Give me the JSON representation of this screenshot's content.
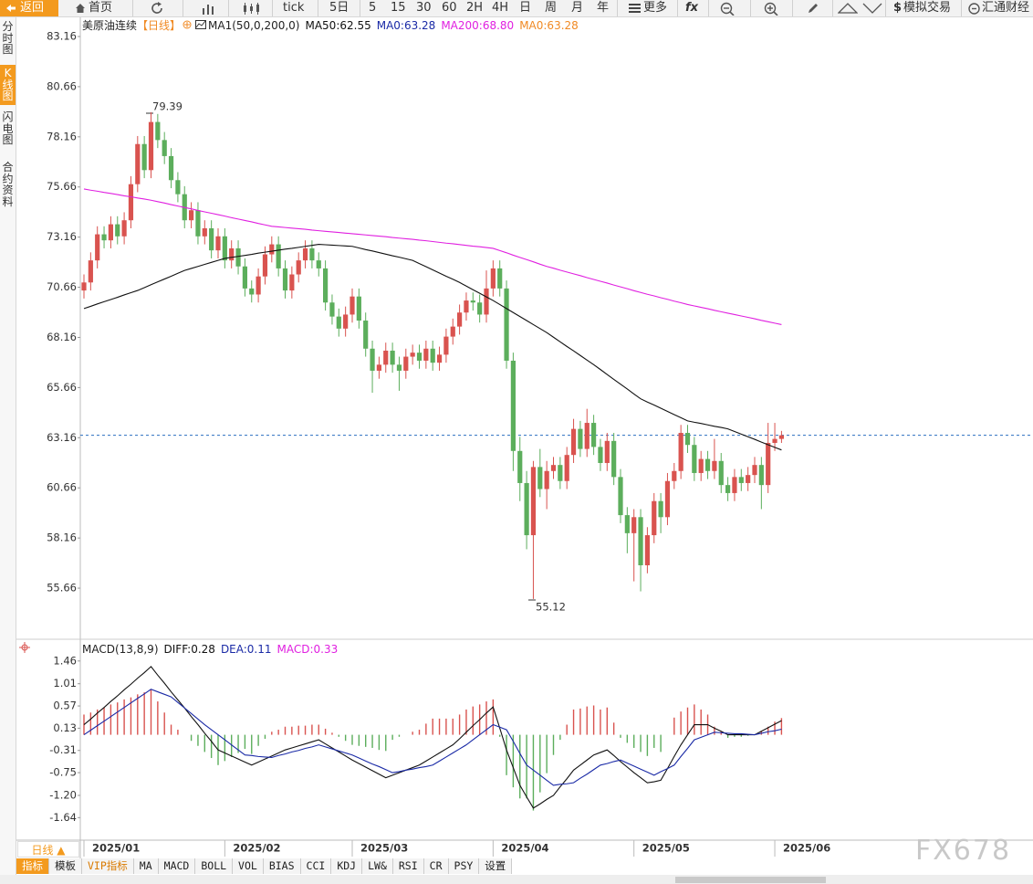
{
  "toolbar": {
    "back": "返回",
    "home": "首页",
    "buttons": [
      "tick",
      "5日",
      "5",
      "15",
      "30",
      "60",
      "2H",
      "4H",
      "日",
      "周",
      "月",
      "年"
    ],
    "more": "更多",
    "fx": "fx",
    "sim_mark": "$",
    "sim": "模拟交易",
    "brand": "汇通财经"
  },
  "sidebar": [
    "分时图",
    "K线图",
    "闪电图",
    "合约资料"
  ],
  "chart_data": [
    {
      "type": "candlestick",
      "title": "美原油连续",
      "period": "【日线】",
      "indicator": "MA1(50,0,200,0)",
      "up_color": "#d9534f",
      "down_color": "#5cae5c",
      "categories": [
        "2025/01",
        null,
        null,
        null,
        null,
        null,
        null,
        null,
        null,
        null,
        null,
        null,
        null,
        null,
        null,
        null,
        null,
        null,
        null,
        null,
        null,
        "2025/02",
        null,
        null,
        null,
        null,
        null,
        null,
        null,
        null,
        null,
        null,
        null,
        null,
        null,
        null,
        null,
        null,
        null,
        null,
        "2025/03",
        null,
        null,
        null,
        null,
        null,
        null,
        null,
        null,
        null,
        null,
        null,
        null,
        null,
        null,
        null,
        null,
        null,
        null,
        null,
        null,
        "2025/04",
        null,
        null,
        null,
        null,
        null,
        null,
        null,
        null,
        null,
        null,
        null,
        null,
        null,
        null,
        null,
        null,
        null,
        null,
        null,
        null,
        "2025/05",
        null,
        null,
        null,
        null,
        null,
        null,
        null,
        null,
        null,
        null,
        null,
        null,
        null,
        null,
        null,
        null,
        null,
        null,
        null,
        null,
        "2025/06",
        null
      ],
      "open": [
        70.5,
        70.9,
        72.0,
        73.3,
        73.0,
        73.8,
        73.2,
        74.0,
        75.8,
        77.8,
        76.5,
        78.9,
        78.0,
        77.2,
        76.0,
        75.3,
        74.0,
        74.5,
        73.2,
        73.6,
        72.5,
        73.2,
        72.0,
        72.6,
        71.7,
        70.6,
        70.3,
        71.2,
        72.3,
        72.8,
        71.6,
        70.5,
        71.3,
        72.0,
        72.6,
        72.0,
        71.6,
        69.9,
        69.2,
        68.6,
        69.3,
        70.2,
        69.0,
        67.6,
        66.5,
        66.8,
        67.5,
        66.8,
        66.5,
        67.2,
        67.4,
        67.0,
        67.6,
        66.9,
        67.3,
        68.2,
        68.7,
        69.4,
        70.0,
        69.9,
        69.3,
        70.6,
        71.6,
        70.6,
        67.0,
        62.5,
        60.9,
        58.3,
        61.7,
        60.6,
        61.5,
        61.8,
        61.0,
        62.3,
        63.6,
        62.6,
        63.9,
        62.7,
        61.9,
        63.0,
        61.2,
        59.3,
        58.4,
        59.2,
        56.8,
        58.3,
        60.0,
        59.2,
        61.0,
        61.5,
        63.4,
        62.8,
        61.4,
        62.1,
        61.5,
        62.0,
        60.8,
        60.4,
        61.2,
        60.9,
        61.3,
        61.8,
        60.8,
        62.9,
        63.1
      ],
      "high": [
        71.3,
        72.4,
        73.7,
        73.7,
        74.2,
        74.2,
        74.4,
        76.2,
        78.2,
        78.2,
        79.39,
        79.3,
        78.4,
        77.6,
        76.4,
        75.7,
        74.9,
        74.9,
        74.0,
        74.0,
        73.6,
        73.6,
        73.0,
        73.0,
        72.1,
        71.0,
        71.6,
        72.7,
        73.2,
        73.2,
        72.0,
        71.7,
        72.4,
        73.0,
        73.0,
        72.4,
        72.0,
        70.3,
        69.6,
        69.7,
        70.6,
        70.6,
        69.4,
        68.0,
        67.2,
        67.9,
        67.9,
        67.2,
        67.6,
        67.8,
        67.8,
        68.0,
        68.0,
        67.7,
        68.6,
        69.1,
        69.8,
        70.4,
        70.4,
        70.3,
        71.5,
        72.0,
        72.0,
        71.0,
        67.4,
        63.2,
        61.5,
        62.0,
        62.6,
        62.0,
        62.2,
        62.2,
        62.7,
        64.1,
        64.0,
        64.6,
        64.3,
        63.1,
        63.4,
        63.4,
        61.6,
        59.7,
        59.6,
        59.6,
        58.7,
        60.4,
        60.4,
        61.4,
        61.9,
        63.8,
        63.8,
        63.2,
        62.5,
        62.5,
        63.1,
        62.4,
        61.2,
        61.6,
        61.6,
        61.7,
        62.2,
        62.2,
        63.9,
        63.9,
        63.5
      ],
      "low": [
        70.1,
        70.5,
        71.6,
        72.6,
        72.6,
        72.8,
        72.8,
        73.6,
        75.4,
        76.1,
        76.1,
        77.6,
        76.8,
        75.6,
        74.9,
        73.6,
        73.6,
        72.8,
        72.8,
        72.1,
        72.1,
        71.6,
        71.6,
        71.3,
        70.2,
        69.9,
        69.9,
        70.8,
        71.9,
        71.2,
        70.1,
        70.1,
        70.9,
        71.6,
        71.6,
        71.2,
        69.5,
        68.8,
        68.2,
        68.2,
        68.9,
        68.6,
        67.2,
        65.4,
        66.1,
        66.4,
        66.4,
        65.5,
        66.1,
        66.8,
        66.6,
        66.6,
        66.5,
        66.5,
        66.9,
        67.8,
        68.3,
        69.0,
        69.5,
        68.9,
        68.9,
        70.2,
        70.2,
        66.6,
        61.5,
        60.0,
        57.6,
        55.12,
        60.2,
        59.6,
        61.1,
        60.6,
        60.6,
        61.9,
        62.2,
        62.2,
        62.3,
        61.5,
        61.5,
        60.8,
        58.9,
        57.4,
        56.0,
        55.5,
        56.4,
        57.9,
        58.4,
        58.8,
        60.6,
        61.1,
        62.4,
        61.0,
        61.0,
        61.1,
        61.1,
        60.4,
        60.0,
        60.0,
        60.5,
        60.5,
        60.9,
        59.6,
        60.4,
        62.5,
        62.9
      ],
      "close": [
        70.9,
        72.0,
        73.3,
        73.0,
        73.8,
        73.2,
        74.0,
        75.8,
        77.8,
        76.5,
        78.9,
        78.0,
        77.2,
        76.0,
        75.3,
        74.0,
        74.5,
        73.2,
        73.6,
        72.5,
        73.2,
        72.0,
        72.6,
        71.7,
        70.6,
        70.3,
        71.2,
        72.3,
        72.8,
        71.6,
        70.5,
        71.3,
        72.0,
        72.6,
        72.0,
        71.6,
        69.9,
        69.2,
        68.6,
        69.3,
        70.2,
        69.0,
        67.6,
        66.5,
        66.8,
        67.5,
        66.8,
        66.5,
        67.2,
        67.4,
        67.0,
        67.6,
        66.9,
        67.3,
        68.2,
        68.7,
        69.4,
        70.0,
        69.9,
        69.3,
        70.6,
        71.6,
        70.6,
        67.0,
        62.5,
        60.9,
        58.3,
        61.7,
        60.6,
        61.5,
        61.8,
        61.0,
        62.3,
        63.6,
        62.6,
        63.9,
        62.7,
        61.9,
        63.0,
        61.2,
        59.3,
        58.4,
        59.2,
        56.8,
        58.3,
        60.0,
        59.2,
        61.0,
        61.5,
        63.4,
        62.8,
        61.4,
        62.1,
        61.5,
        62.0,
        60.8,
        60.4,
        61.2,
        60.9,
        61.3,
        61.8,
        60.8,
        62.9,
        63.1,
        63.28
      ],
      "series": [
        {
          "name": "MA50:62.55",
          "color": "#111111",
          "values": [
            69.6,
            69.71,
            69.83,
            69.94,
            70.05,
            70.16,
            70.28,
            70.39,
            70.5,
            70.64,
            70.79,
            70.93,
            71.07,
            71.21,
            71.36,
            71.5,
            71.6,
            71.7,
            71.8,
            71.9,
            72.0,
            72.1,
            72.15,
            72.2,
            72.25,
            72.3,
            72.36,
            72.41,
            72.46,
            72.51,
            72.56,
            72.6,
            72.65,
            72.7,
            72.75,
            72.8,
            72.78,
            72.76,
            72.74,
            72.72,
            72.7,
            72.62,
            72.54,
            72.47,
            72.39,
            72.31,
            72.23,
            72.16,
            72.08,
            72.0,
            71.84,
            71.69,
            71.53,
            71.37,
            71.21,
            71.06,
            70.9,
            70.72,
            70.54,
            70.36,
            70.18,
            70.0,
            69.8,
            69.6,
            69.4,
            69.2,
            69.0,
            68.8,
            68.6,
            68.4,
            68.17,
            67.94,
            67.71,
            67.49,
            67.26,
            67.03,
            66.8,
            66.56,
            66.31,
            66.07,
            65.83,
            65.59,
            65.34,
            65.1,
            64.94,
            64.79,
            64.63,
            64.47,
            64.31,
            64.16,
            64.0,
            63.93,
            63.87,
            63.8,
            63.73,
            63.67,
            63.6,
            63.47,
            63.34,
            63.21,
            63.08,
            62.94,
            62.81,
            62.68,
            62.55
          ]
        },
        {
          "name": "MA200:68.80",
          "color": "#e020e0",
          "values": [
            75.56,
            75.5,
            75.45,
            75.39,
            75.34,
            75.28,
            75.22,
            75.17,
            75.11,
            75.06,
            75.0,
            74.93,
            74.86,
            74.78,
            74.71,
            74.64,
            74.57,
            74.49,
            74.42,
            74.35,
            74.28,
            74.21,
            74.13,
            74.06,
            73.99,
            73.92,
            73.84,
            73.77,
            73.7,
            73.67,
            73.64,
            73.61,
            73.58,
            73.55,
            73.51,
            73.48,
            73.45,
            73.42,
            73.39,
            73.36,
            73.33,
            73.3,
            73.27,
            73.24,
            73.21,
            73.18,
            73.14,
            73.11,
            73.08,
            73.05,
            73.01,
            72.98,
            72.94,
            72.9,
            72.86,
            72.83,
            72.79,
            72.75,
            72.71,
            72.68,
            72.64,
            72.6,
            72.49,
            72.38,
            72.26,
            72.15,
            72.04,
            71.93,
            71.81,
            71.7,
            71.61,
            71.51,
            71.42,
            71.33,
            71.24,
            71.14,
            71.05,
            70.96,
            70.87,
            70.77,
            70.68,
            70.59,
            70.49,
            70.4,
            70.31,
            70.23,
            70.14,
            70.06,
            69.97,
            69.89,
            69.8,
            69.73,
            69.66,
            69.59,
            69.51,
            69.44,
            69.37,
            69.3,
            69.23,
            69.16,
            69.09,
            69.01,
            68.94,
            68.87,
            68.8
          ]
        }
      ],
      "legend_extra": [
        {
          "name": "MA0:63.28",
          "color": "#1a2aa6"
        },
        {
          "name": "MA0:63.28",
          "color": "#f08a24"
        }
      ],
      "last_price": 63.28,
      "last_price_color": "#2a6fc0",
      "annotations": [
        {
          "label": "79.39",
          "color": "#d9534f"
        },
        {
          "label": "55.12",
          "color": "#5cae5c"
        }
      ],
      "ylim": [
        53.34,
        83.98
      ],
      "yticks": [
        83.16,
        80.66,
        78.16,
        75.66,
        73.16,
        70.66,
        68.16,
        65.66,
        63.16,
        60.66,
        58.16,
        55.66
      ]
    },
    {
      "type": "macd",
      "title": "MACD(13,8,9)",
      "series": [
        {
          "name": "DIFF:0.28",
          "color": "#111111",
          "values": [
            0.2,
            0.31,
            0.43,
            0.54,
            0.66,
            0.77,
            0.89,
            1.0,
            1.12,
            1.23,
            1.35,
            1.18,
            1.02,
            0.85,
            0.69,
            0.53,
            0.36,
            0.2,
            0.03,
            -0.13,
            -0.3,
            -0.36,
            -0.42,
            -0.48,
            -0.54,
            -0.6,
            -0.54,
            -0.48,
            -0.42,
            -0.36,
            -0.3,
            -0.26,
            -0.22,
            -0.18,
            -0.14,
            -0.1,
            -0.18,
            -0.26,
            -0.34,
            -0.42,
            -0.5,
            -0.57,
            -0.64,
            -0.71,
            -0.78,
            -0.85,
            -0.8,
            -0.75,
            -0.7,
            -0.65,
            -0.6,
            -0.52,
            -0.44,
            -0.36,
            -0.28,
            -0.2,
            -0.08,
            0.05,
            0.18,
            0.3,
            0.43,
            0.55,
            0.13,
            -0.3,
            -0.65,
            -1.0,
            -1.23,
            -1.45,
            -1.37,
            -1.28,
            -1.2,
            -1.03,
            -0.87,
            -0.7,
            -0.6,
            -0.5,
            -0.4,
            -0.35,
            -0.3,
            -0.41,
            -0.53,
            -0.64,
            -0.75,
            -0.85,
            -0.95,
            -0.93,
            -0.9,
            -0.67,
            -0.43,
            -0.2,
            0.0,
            0.2,
            0.2,
            0.2,
            0.13,
            0.07,
            0.0,
            0.0,
            0.0,
            0.0,
            0.0,
            0.07,
            0.14,
            0.21,
            0.28
          ]
        },
        {
          "name": "DEA:0.11",
          "color": "#1a2aa6",
          "values": [
            0.0,
            0.09,
            0.18,
            0.27,
            0.36,
            0.45,
            0.54,
            0.63,
            0.72,
            0.81,
            0.9,
            0.85,
            0.8,
            0.75,
            0.64,
            0.53,
            0.42,
            0.31,
            0.2,
            0.1,
            0.0,
            -0.1,
            -0.2,
            -0.3,
            -0.4,
            -0.41,
            -0.43,
            -0.44,
            -0.45,
            -0.41,
            -0.38,
            -0.34,
            -0.31,
            -0.27,
            -0.24,
            -0.2,
            -0.24,
            -0.28,
            -0.32,
            -0.36,
            -0.4,
            -0.46,
            -0.52,
            -0.58,
            -0.63,
            -0.69,
            -0.75,
            -0.73,
            -0.7,
            -0.68,
            -0.65,
            -0.63,
            -0.6,
            -0.52,
            -0.44,
            -0.36,
            -0.28,
            -0.2,
            -0.1,
            0.0,
            0.1,
            0.2,
            0.15,
            0.1,
            -0.13,
            -0.37,
            -0.6,
            -0.7,
            -0.8,
            -0.9,
            -1.0,
            -0.98,
            -0.97,
            -0.95,
            -0.86,
            -0.78,
            -0.69,
            -0.6,
            -0.57,
            -0.53,
            -0.5,
            -0.56,
            -0.62,
            -0.68,
            -0.74,
            -0.8,
            -0.73,
            -0.67,
            -0.6,
            -0.43,
            -0.27,
            -0.1,
            -0.05,
            0.0,
            0.05,
            0.04,
            0.03,
            0.02,
            0.02,
            0.01,
            0.0,
            0.03,
            0.06,
            0.08,
            0.11
          ]
        },
        {
          "name": "MACD:0.33",
          "color": "#e020e0",
          "up_color": "#d9534f",
          "down_color": "#5cae5c",
          "values": [
            0.4,
            0.44,
            0.5,
            0.54,
            0.6,
            0.64,
            0.7,
            0.74,
            0.8,
            0.84,
            0.9,
            0.66,
            0.44,
            0.2,
            0.1,
            0.0,
            -0.12,
            -0.22,
            -0.34,
            -0.46,
            -0.6,
            -0.52,
            -0.44,
            -0.36,
            -0.28,
            -0.38,
            -0.22,
            -0.08,
            0.06,
            0.1,
            0.16,
            0.16,
            0.18,
            0.18,
            0.2,
            0.2,
            0.12,
            0.04,
            -0.04,
            -0.12,
            -0.2,
            -0.22,
            -0.24,
            -0.26,
            -0.3,
            -0.32,
            -0.1,
            -0.04,
            0.0,
            0.06,
            0.1,
            0.22,
            0.32,
            0.32,
            0.32,
            0.32,
            0.4,
            0.5,
            0.56,
            0.6,
            0.66,
            0.7,
            -0.04,
            -0.8,
            -1.04,
            -1.26,
            -1.26,
            -1.5,
            -1.14,
            -0.76,
            -0.4,
            -0.1,
            0.2,
            0.5,
            0.52,
            0.56,
            0.58,
            0.5,
            0.54,
            0.24,
            -0.06,
            -0.16,
            -0.26,
            -0.34,
            -0.42,
            -0.26,
            -0.34,
            0.0,
            0.34,
            0.46,
            0.54,
            0.6,
            0.5,
            0.4,
            0.16,
            0.06,
            -0.06,
            -0.04,
            -0.04,
            -0.02,
            0.0,
            0.08,
            0.16,
            0.26,
            0.33
          ]
        }
      ],
      "ylim": [
        -2.05,
        1.8
      ],
      "yticks": [
        1.46,
        1.01,
        0.57,
        0.13,
        -0.31,
        -0.75,
        {
          "value": -1.2,
          "label": "-1.20"
        },
        -1.64
      ]
    }
  ],
  "bottom": {
    "period": "日线 ▲",
    "tabs": [
      "指标",
      "模板",
      "VIP指标",
      "MA",
      "MACD",
      "BOLL",
      "VOL",
      "BIAS",
      "CCI",
      "KDJ",
      "LW&",
      "RSI",
      "CR",
      "PSY",
      "设置"
    ]
  },
  "watermark": "FX678"
}
